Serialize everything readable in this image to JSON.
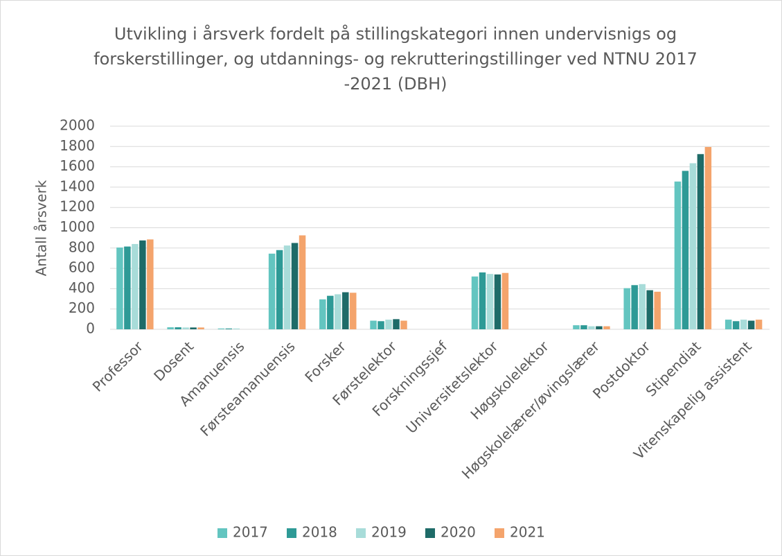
{
  "chart_data": {
    "type": "bar",
    "title": "Utvikling i årsverk fordelt på stillingskategori innen undervisnigs og forskerstillinger, og utdannings- og rekrutteringstillinger ved NTNU 2017 -2021 (DBH)",
    "y_label": "Antall årsverk",
    "categories": [
      "Professor",
      "Dosent",
      "Amanuensis",
      "Førsteamanuensis",
      "Forsker",
      "Førstelektor",
      "Forskningssjef",
      "Universitetslektor",
      "Høgskolelektor",
      "Høgskolelærer/øvingslærer",
      "Postdoktor",
      "Stipendiat",
      "Vitenskapelig assistent"
    ],
    "series": [
      {
        "name": "2017",
        "color": "#63c5c0",
        "values": [
          805,
          20,
          8,
          745,
          295,
          85,
          0,
          520,
          0,
          40,
          405,
          1455,
          95
        ]
      },
      {
        "name": "2018",
        "color": "#2e9a96",
        "values": [
          815,
          20,
          8,
          780,
          330,
          80,
          0,
          560,
          0,
          40,
          435,
          1560,
          80
        ]
      },
      {
        "name": "2019",
        "color": "#a8dcd9",
        "values": [
          840,
          18,
          8,
          825,
          345,
          95,
          0,
          545,
          0,
          30,
          445,
          1635,
          95
        ]
      },
      {
        "name": "2020",
        "color": "#1e6b68",
        "values": [
          875,
          18,
          0,
          850,
          365,
          100,
          0,
          540,
          0,
          30,
          385,
          1725,
          85
        ]
      },
      {
        "name": "2021",
        "color": "#f4a46c",
        "values": [
          885,
          18,
          0,
          925,
          360,
          85,
          0,
          555,
          0,
          30,
          370,
          1795,
          95
        ]
      }
    ],
    "ylim": [
      0,
      2000
    ],
    "yticks": [
      0,
      200,
      400,
      600,
      800,
      1000,
      1200,
      1400,
      1600,
      1800,
      2000
    ],
    "grid": true,
    "legend": "bottom"
  }
}
